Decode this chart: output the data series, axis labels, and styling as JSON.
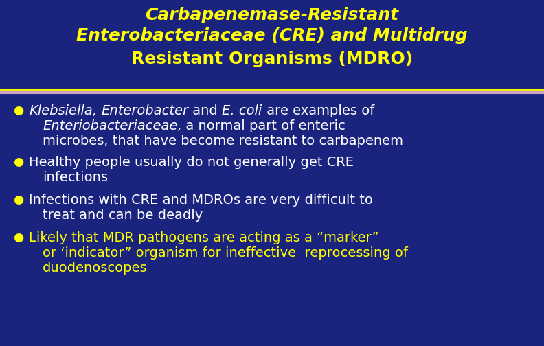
{
  "bg_color": "#1a237e",
  "title_color": "#ffff00",
  "bullet_color": "#ffffff",
  "bullet_dot_color": "#ffff00",
  "sep_color_top": "#ffff00",
  "sep_color_bottom": "#c8a0c8",
  "title_line1": "Carbapenemase-Resistant",
  "title_line2": "Enterobacteriaceae (CRE) and Multidrug",
  "title_line3": "Resistant Organisms (MDRO)",
  "title_fontsize": 18,
  "bullet_fontsize": 14,
  "fig_width": 7.92,
  "fig_height": 5.04,
  "dpi": 100
}
